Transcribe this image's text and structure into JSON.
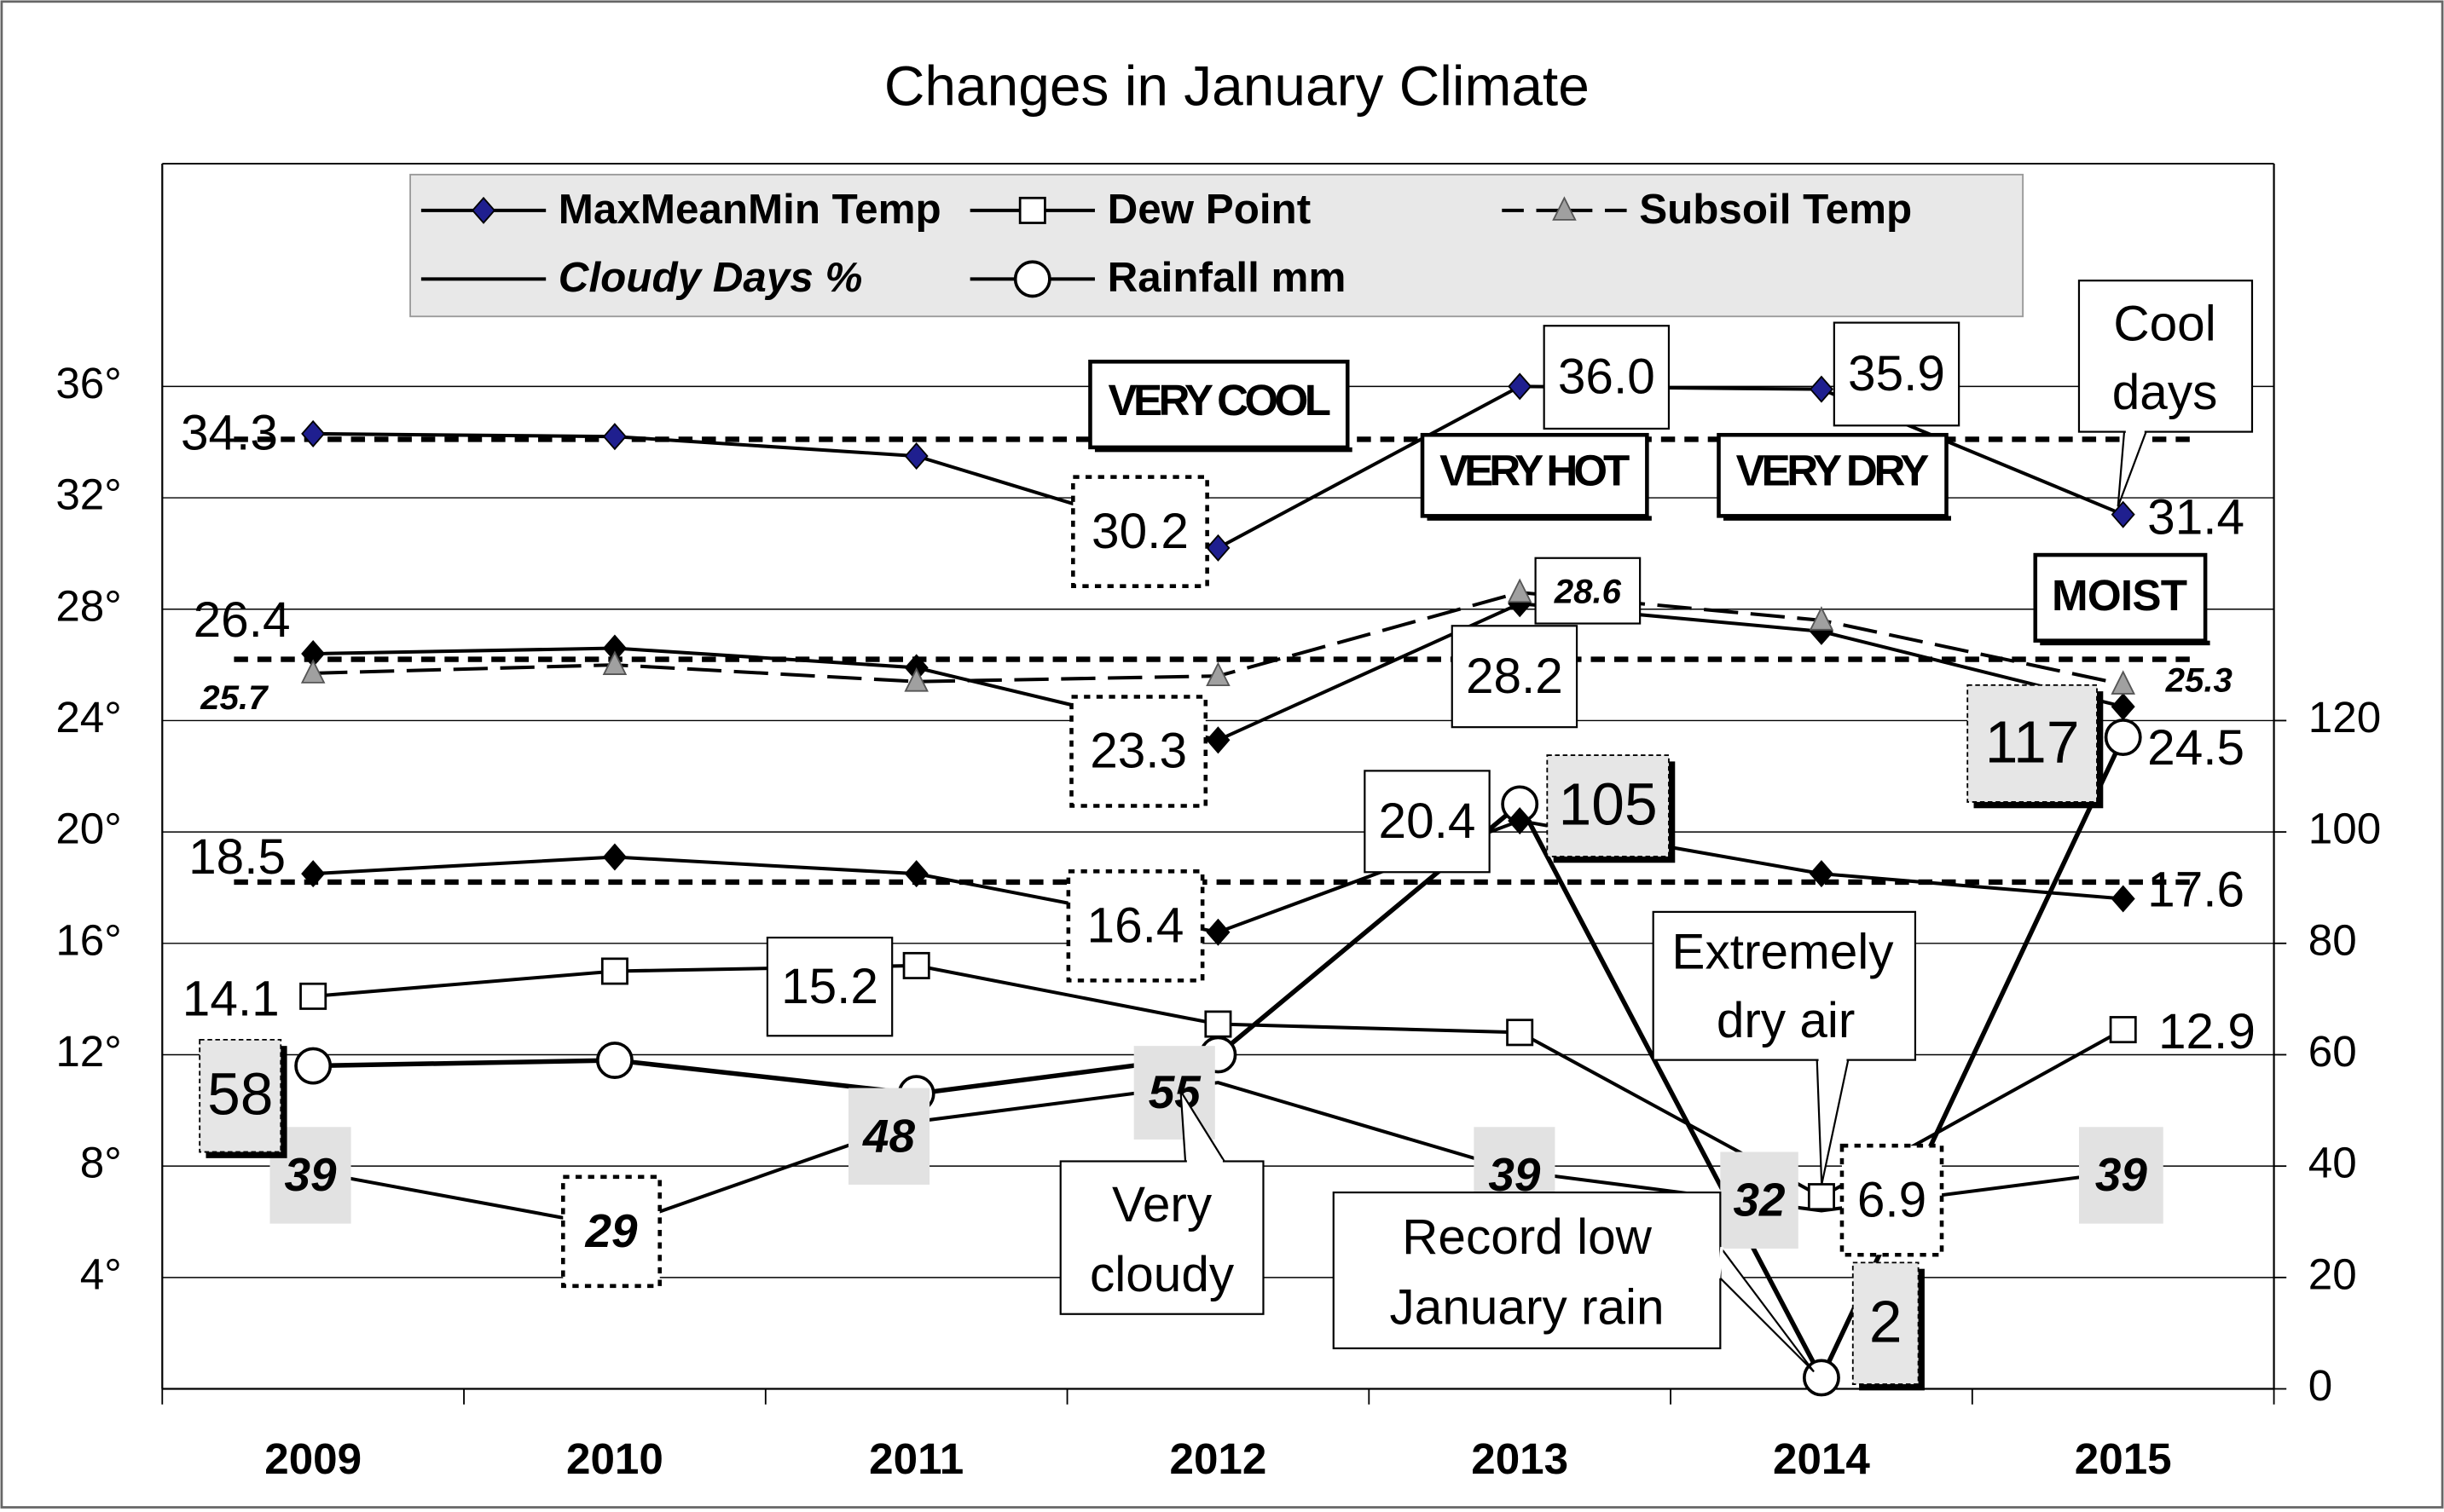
{
  "chart_data": {
    "type": "line",
    "title": "Changes in January Climate",
    "categories": [
      "2009",
      "2010",
      "2011",
      "2012",
      "2013",
      "2014",
      "2015"
    ],
    "ylim": [
      0,
      44
    ],
    "yticks": [
      {
        "value": 4,
        "label": "4°"
      },
      {
        "value": 8,
        "label": "8°"
      },
      {
        "value": 12,
        "label": "12°"
      },
      {
        "value": 16,
        "label": "16°"
      },
      {
        "value": 20,
        "label": "20°"
      },
      {
        "value": 24,
        "label": "24°"
      },
      {
        "value": 28,
        "label": "28°"
      },
      {
        "value": 32,
        "label": "32°"
      },
      {
        "value": 36,
        "label": "36°"
      }
    ],
    "y2lim": [
      0,
      220
    ],
    "y2ticks": [
      0,
      20,
      40,
      60,
      80,
      100,
      120
    ],
    "grid": true,
    "average_lines": [
      34.1,
      26.2,
      18.2
    ],
    "series": [
      {
        "name": "MaxMeanMin Temp",
        "color": "#000000",
        "marker": "diamond",
        "marker_fill": "#1f1f8f",
        "values": [
          34.3,
          34.2,
          33.5,
          30.2,
          36.0,
          35.9,
          31.4
        ],
        "value_labels": [
          "34.3",
          null,
          null,
          "30.2",
          "36.0",
          "35.9",
          "31.4"
        ]
      },
      {
        "name": "Dew Point",
        "color": "#000000",
        "marker": "square",
        "marker_fill": "#ffffff",
        "values": [
          14.1,
          15.0,
          15.2,
          13.1,
          12.8,
          6.9,
          12.9
        ],
        "value_labels": [
          "14.1",
          null,
          "15.2",
          null,
          null,
          "6.9",
          "12.9"
        ]
      },
      {
        "name": "Subsoil Temp",
        "color": "#000000",
        "marker": "triangle",
        "marker_fill": "#a0a0a0",
        "dash": true,
        "values": [
          25.7,
          26.0,
          25.4,
          25.6,
          28.6,
          27.6,
          25.3
        ],
        "value_labels": [
          "25.7",
          null,
          null,
          null,
          "28.6",
          null,
          "25.3"
        ]
      },
      {
        "name": "Cloudy Days %",
        "color": "#000000",
        "marker": "none",
        "marker_fill": "#000000",
        "axis": "y2",
        "values": [
          39,
          29,
          48,
          55,
          39,
          32,
          39
        ]
      },
      {
        "name": "Rainfall mm",
        "color": "#000000",
        "marker": "circle",
        "marker_fill": "#ffffff",
        "axis": "y2",
        "values": [
          58,
          59,
          53,
          60,
          105,
          2,
          117
        ],
        "value_labels": [
          "58",
          null,
          null,
          null,
          "105",
          "2",
          "117"
        ]
      },
      {
        "color": "#000000",
        "marker": "diamond",
        "marker_fill": "#000000",
        "values": [
          26.4,
          26.6,
          25.9,
          23.3,
          28.2,
          27.2,
          24.5
        ],
        "value_labels": [
          "26.4",
          null,
          null,
          "23.3",
          "28.2",
          null,
          "24.5"
        ]
      },
      {
        "color": "#000000",
        "marker": "diamond",
        "marker_fill": "#000000",
        "values": [
          18.5,
          19.1,
          18.5,
          16.4,
          20.4,
          18.5,
          17.6
        ],
        "value_labels": [
          "18.5",
          null,
          null,
          "16.4",
          "20.4",
          null,
          "17.6"
        ]
      }
    ],
    "annotations": [
      [
        "VERY COOL"
      ],
      [
        "VERY HOT"
      ],
      [
        "VERY DRY"
      ],
      [
        "MOIST"
      ],
      [
        "Cool",
        "days"
      ],
      [
        "Extremely",
        "dry air"
      ],
      [
        "Very",
        "cloudy"
      ],
      [
        "Record low",
        "January rain"
      ]
    ]
  }
}
